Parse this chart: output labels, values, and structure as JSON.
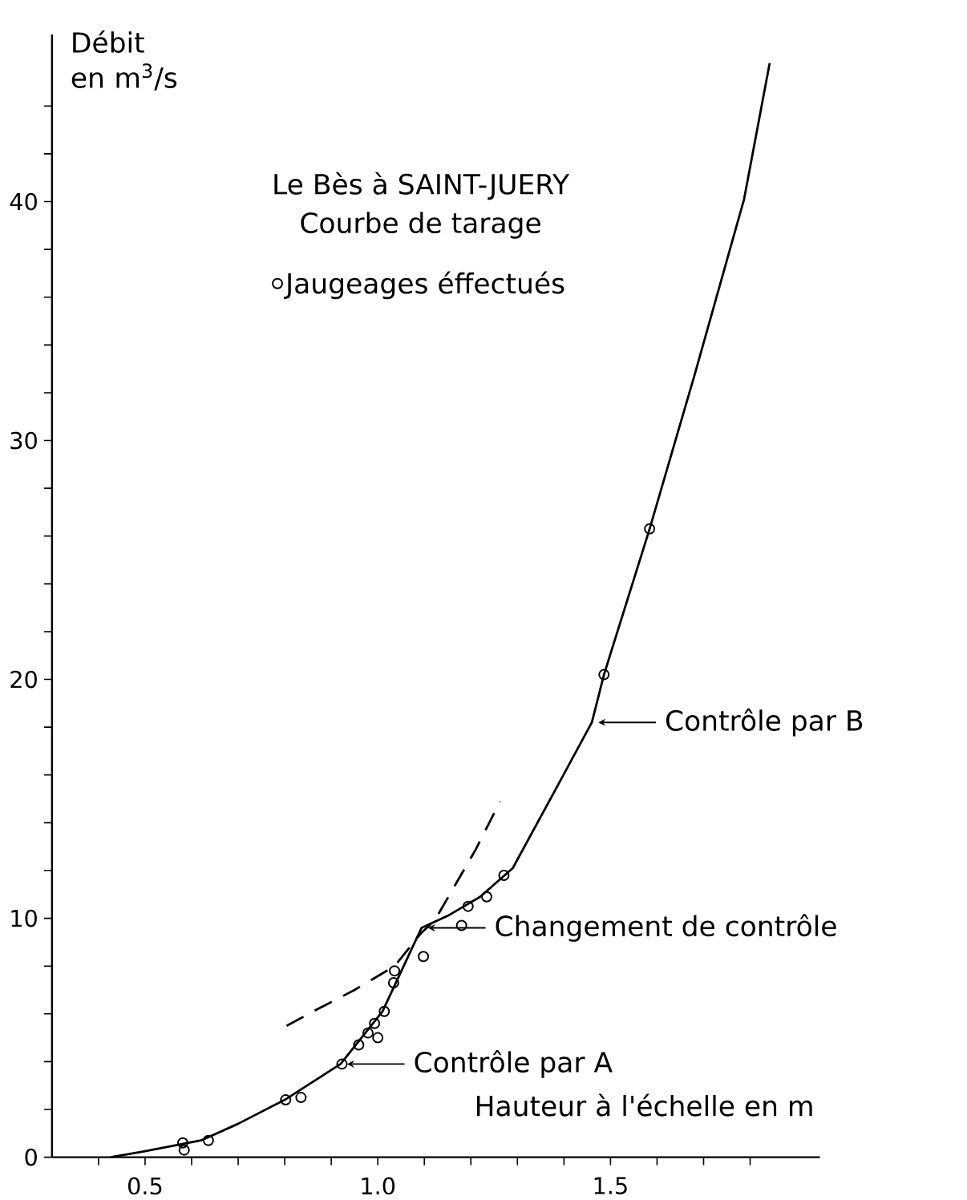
{
  "chart_data": {
    "type": "line",
    "title": "Le Bès à SAINT-JUERY",
    "subtitle": "Courbe de tarage",
    "xlabel": "Hauteur à l'échelle en m",
    "ylabel": "Débit en m$^{3}$/s",
    "xlim": [
      0.3,
      1.95
    ],
    "ylim": [
      0,
      47
    ],
    "xticks": [
      {
        "value": 0.4,
        "label": null
      },
      {
        "value": 0.5,
        "label": "0.5"
      },
      {
        "value": 0.6,
        "label": null
      },
      {
        "value": 0.7,
        "label": null
      },
      {
        "value": 0.8,
        "label": null
      },
      {
        "value": 0.9,
        "label": null
      },
      {
        "value": 1.0,
        "label": "1.0"
      },
      {
        "value": 1.1,
        "label": null
      },
      {
        "value": 1.2,
        "label": null
      },
      {
        "value": 1.3,
        "label": null
      },
      {
        "value": 1.4,
        "label": null
      },
      {
        "value": 1.5,
        "label": "1.5"
      },
      {
        "value": 1.6,
        "label": null
      },
      {
        "value": 1.7,
        "label": null
      },
      {
        "value": 1.8,
        "label": null
      }
    ],
    "yticks": [
      0,
      {
        "value": 2,
        "label": null
      },
      {
        "value": 4,
        "label": null
      },
      {
        "value": 6,
        "label": null
      },
      {
        "value": 8,
        "label": null
      },
      10,
      {
        "value": 12,
        "label": null
      },
      {
        "value": 14,
        "label": null
      },
      {
        "value": 16,
        "label": null
      },
      {
        "value": 18,
        "label": null
      },
      20,
      {
        "value": 22,
        "label": null
      },
      {
        "value": 24,
        "label": null
      },
      {
        "value": 26,
        "label": null
      },
      {
        "value": 28,
        "label": null
      },
      30,
      {
        "value": 32,
        "label": null
      },
      {
        "value": 34,
        "label": null
      },
      {
        "value": 36,
        "label": null
      },
      {
        "value": 38,
        "label": null
      },
      40,
      {
        "value": 42,
        "label": null
      },
      {
        "value": 44,
        "label": null
      }
    ],
    "legend": "top",
    "series": [
      {
        "color": "#000000",
        "line_style": "solid",
        "marker": "none",
        "x": [
          0.426,
          0.5,
          0.62,
          0.7,
          0.8,
          0.92,
          1.01,
          1.094,
          1.15,
          1.22,
          1.29,
          1.371,
          1.46,
          1.486,
          1.584,
          1.68,
          1.787,
          1.842
        ],
        "values": [
          0,
          0.25,
          0.7,
          1.4,
          2.4,
          3.9,
          6.1,
          9.6,
          10.1,
          10.9,
          12.1,
          15.0,
          18.2,
          20.2,
          26.3,
          32.7,
          40.1,
          45.8
        ]
      },
      {
        "color": "#000000",
        "line_style": "dashed",
        "marker": "none",
        "x": [
          0.804,
          0.871,
          0.95,
          1.036,
          1.094,
          1.122,
          1.211,
          1.263
        ],
        "values": [
          5.5,
          6.2,
          7.0,
          8.0,
          9.4,
          9.9,
          12.9,
          14.9
        ]
      },
      {
        "type": "scatter",
        "name": "Jaugeages éffectués",
        "color": "#000000",
        "marker": "circle",
        "x": [
          0.581,
          0.584,
          0.636,
          0.802,
          0.835,
          0.923,
          0.959,
          0.979,
          1.0,
          0.993,
          1.014,
          1.034,
          1.036,
          1.098,
          1.18,
          1.194,
          1.234,
          1.271,
          1.486,
          1.584
        ],
        "values": [
          0.6,
          0.3,
          0.7,
          2.4,
          2.5,
          3.9,
          4.7,
          5.2,
          5.0,
          5.6,
          6.1,
          7.3,
          7.8,
          8.4,
          9.7,
          10.5,
          10.9,
          11.8,
          20.2,
          26.3
        ]
      }
    ],
    "annotations": [
      {
        "text": "Contrôle par B",
        "x": 1.46,
        "y": 18.2
      },
      {
        "text": "Changement de contrôle",
        "x": 1.094,
        "y": 9.6
      },
      {
        "text": "Contrôle par A",
        "x": 0.92,
        "y": 3.9
      }
    ]
  }
}
